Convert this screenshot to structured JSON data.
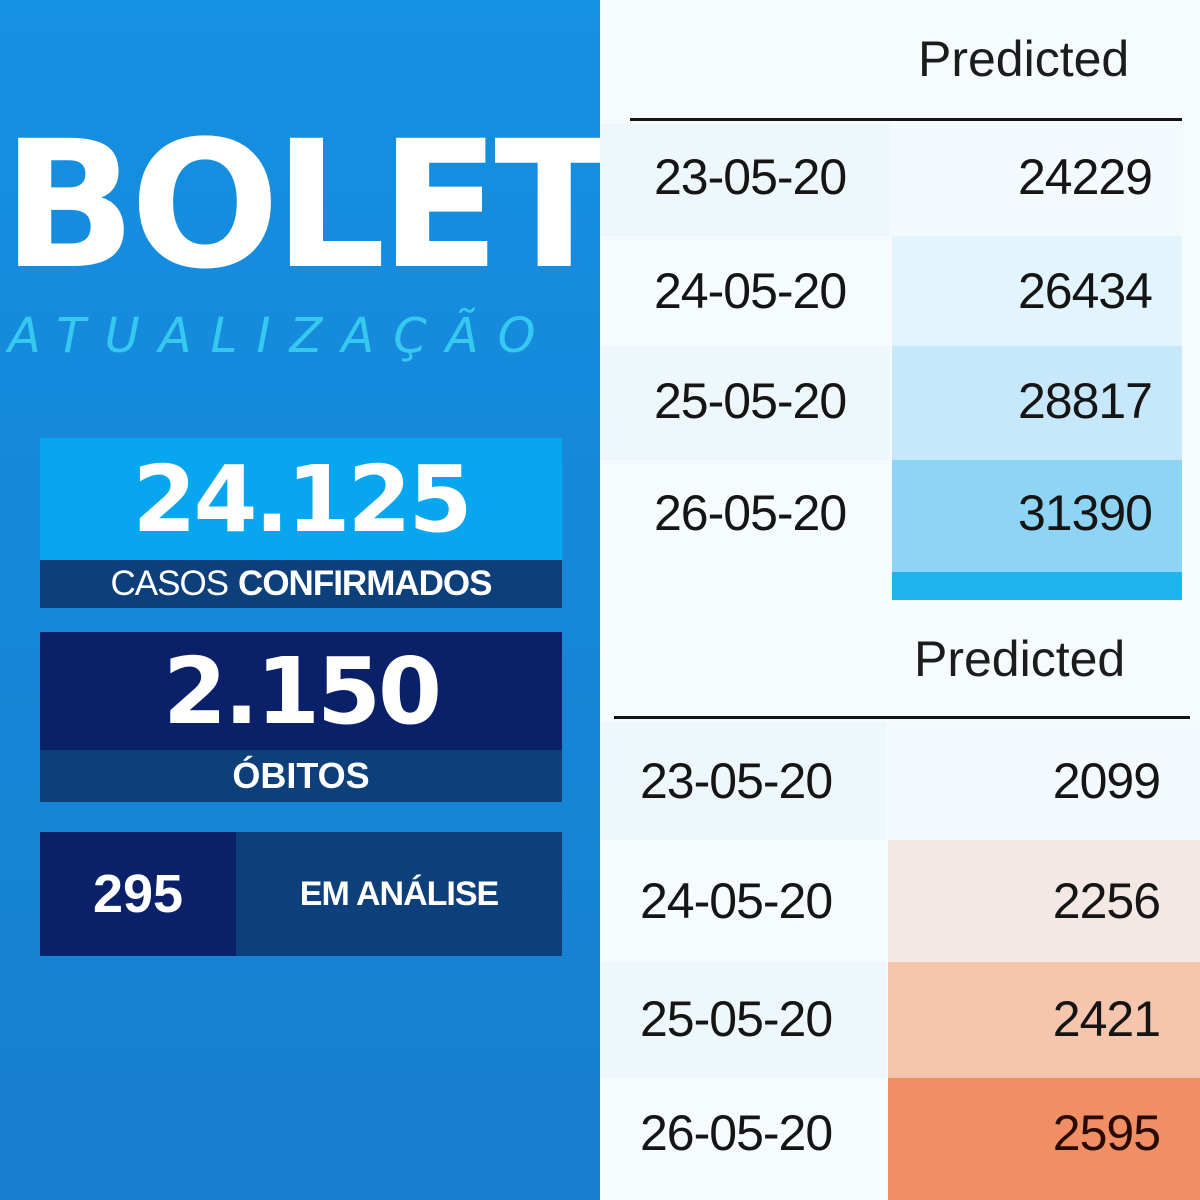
{
  "left": {
    "title": "BOLET",
    "subtitle": "ATUALIZAÇÃO",
    "cases": {
      "value": "24.125",
      "label_light": "CASOS",
      "label_bold": "CONFIRMADOS"
    },
    "deaths": {
      "value": "2.150",
      "label": "ÓBITOS"
    },
    "analysis": {
      "value": "295",
      "label": "EM ANÁLISE"
    },
    "colors": {
      "background": "#1686d8",
      "cases_box": "#08a6ef",
      "deaths_box": "#0a2068",
      "label_band": "#0d3f7a",
      "subtitle": "#35c9f0"
    }
  },
  "cases_table": {
    "header": "Predicted",
    "rows": [
      {
        "date": "23-05-20",
        "value": "24229",
        "color": "#f4fbfe"
      },
      {
        "date": "24-05-20",
        "value": "26434",
        "color": "#e2f4fd"
      },
      {
        "date": "25-05-20",
        "value": "28817",
        "color": "#c7e8fa"
      },
      {
        "date": "26-05-20",
        "value": "31390",
        "color": "#8fd3f5"
      }
    ],
    "tail_color": "#1fb4ee"
  },
  "deaths_table": {
    "header": "Predicted",
    "rows": [
      {
        "date": "23-05-20",
        "value": "2099",
        "color": "#f4fbfe"
      },
      {
        "date": "24-05-20",
        "value": "2256",
        "color": "#f4e8e5"
      },
      {
        "date": "25-05-20",
        "value": "2421",
        "color": "#f5c6ad"
      },
      {
        "date": "26-05-20",
        "value": "2595",
        "color": "#f08f63"
      }
    ]
  }
}
